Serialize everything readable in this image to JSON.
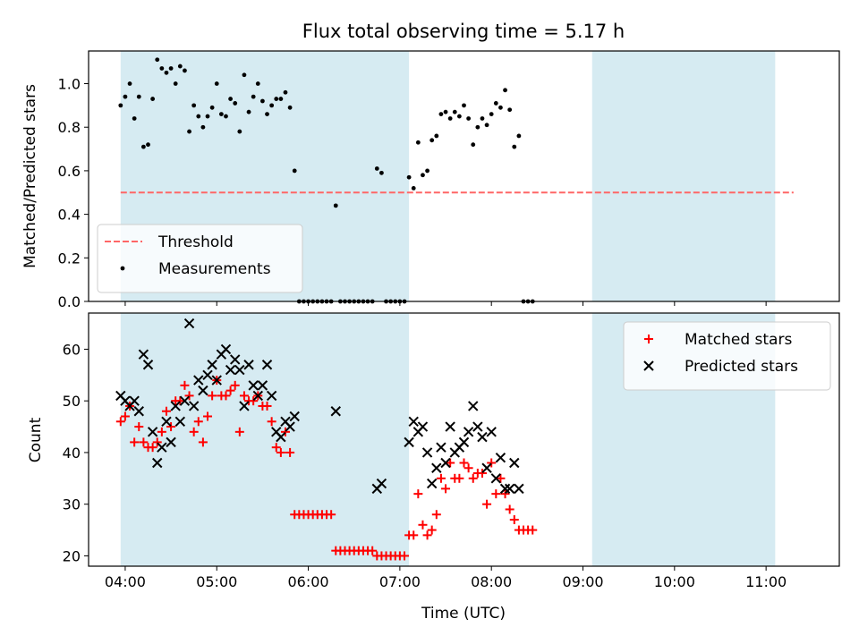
{
  "chart_data": [
    {
      "type": "scatter",
      "title": "Flux total observing time = 5.17 h",
      "xlabel": "",
      "ylabel": "Matched/Predicted stars",
      "xlim": [
        "03:36",
        "11:48"
      ],
      "ylim": [
        0.0,
        1.15
      ],
      "x_tick_labels": [
        "04:00",
        "05:00",
        "06:00",
        "07:00",
        "08:00",
        "09:00",
        "10:00",
        "11:00"
      ],
      "y_tick_labels": [
        "0.0",
        "0.2",
        "0.4",
        "0.6",
        "0.8",
        "1.0"
      ],
      "shaded_intervals": [
        [
          "03:57",
          "07:06"
        ],
        [
          "09:06",
          "11:06"
        ]
      ],
      "shade_color": "#add8e6",
      "threshold": {
        "name": "Threshold",
        "value": 0.5,
        "x_range": [
          "03:57",
          "11:18"
        ],
        "color": "#ff6666",
        "style": "dashed"
      },
      "legend": {
        "position": "lower-left",
        "entries": [
          "Threshold",
          "Measurements"
        ]
      },
      "series": [
        {
          "name": "Measurements",
          "marker": "dot",
          "color": "#000000",
          "points": [
            [
              "03:57",
              0.9
            ],
            [
              "04:00",
              0.94
            ],
            [
              "04:03",
              1.0
            ],
            [
              "04:06",
              0.84
            ],
            [
              "04:09",
              0.94
            ],
            [
              "04:12",
              0.71
            ],
            [
              "04:15",
              0.72
            ],
            [
              "04:18",
              0.93
            ],
            [
              "04:21",
              1.11
            ],
            [
              "04:24",
              1.07
            ],
            [
              "04:27",
              1.05
            ],
            [
              "04:30",
              1.07
            ],
            [
              "04:33",
              1.0
            ],
            [
              "04:36",
              1.08
            ],
            [
              "04:39",
              1.06
            ],
            [
              "04:42",
              0.78
            ],
            [
              "04:45",
              0.9
            ],
            [
              "04:48",
              0.85
            ],
            [
              "04:51",
              0.8
            ],
            [
              "04:54",
              0.85
            ],
            [
              "04:57",
              0.89
            ],
            [
              "05:00",
              1.0
            ],
            [
              "05:03",
              0.86
            ],
            [
              "05:06",
              0.85
            ],
            [
              "05:09",
              0.93
            ],
            [
              "05:12",
              0.91
            ],
            [
              "05:15",
              0.78
            ],
            [
              "05:18",
              1.04
            ],
            [
              "05:21",
              0.87
            ],
            [
              "05:24",
              0.94
            ],
            [
              "05:27",
              1.0
            ],
            [
              "05:30",
              0.92
            ],
            [
              "05:33",
              0.86
            ],
            [
              "05:36",
              0.9
            ],
            [
              "05:39",
              0.93
            ],
            [
              "05:42",
              0.93
            ],
            [
              "05:45",
              0.96
            ],
            [
              "05:48",
              0.89
            ],
            [
              "05:51",
              0.6
            ],
            [
              "05:54",
              0.0
            ],
            [
              "05:57",
              0.0
            ],
            [
              "06:00",
              0.0
            ],
            [
              "06:03",
              0.0
            ],
            [
              "06:06",
              0.0
            ],
            [
              "06:09",
              0.0
            ],
            [
              "06:12",
              0.0
            ],
            [
              "06:15",
              0.0
            ],
            [
              "06:18",
              0.44
            ],
            [
              "06:21",
              0.0
            ],
            [
              "06:24",
              0.0
            ],
            [
              "06:27",
              0.0
            ],
            [
              "06:30",
              0.0
            ],
            [
              "06:33",
              0.0
            ],
            [
              "06:36",
              0.0
            ],
            [
              "06:39",
              0.0
            ],
            [
              "06:42",
              0.0
            ],
            [
              "06:45",
              0.61
            ],
            [
              "06:48",
              0.59
            ],
            [
              "06:51",
              0.0
            ],
            [
              "06:54",
              0.0
            ],
            [
              "06:57",
              0.0
            ],
            [
              "07:00",
              0.0
            ],
            [
              "07:03",
              0.0
            ],
            [
              "07:06",
              0.57
            ],
            [
              "07:09",
              0.52
            ],
            [
              "07:12",
              0.73
            ],
            [
              "07:15",
              0.58
            ],
            [
              "07:18",
              0.6
            ],
            [
              "07:21",
              0.74
            ],
            [
              "07:24",
              0.76
            ],
            [
              "07:27",
              0.86
            ],
            [
              "07:30",
              0.87
            ],
            [
              "07:33",
              0.84
            ],
            [
              "07:36",
              0.87
            ],
            [
              "07:39",
              0.85
            ],
            [
              "07:42",
              0.9
            ],
            [
              "07:45",
              0.84
            ],
            [
              "07:48",
              0.72
            ],
            [
              "07:51",
              0.8
            ],
            [
              "07:54",
              0.84
            ],
            [
              "07:57",
              0.81
            ],
            [
              "08:00",
              0.86
            ],
            [
              "08:03",
              0.91
            ],
            [
              "08:06",
              0.89
            ],
            [
              "08:09",
              0.97
            ],
            [
              "08:12",
              0.88
            ],
            [
              "08:15",
              0.71
            ],
            [
              "08:18",
              0.76
            ],
            [
              "08:21",
              0.0
            ],
            [
              "08:24",
              0.0
            ],
            [
              "08:27",
              0.0
            ]
          ]
        }
      ]
    },
    {
      "type": "scatter",
      "title": "",
      "xlabel": "Time (UTC)",
      "ylabel": "Count",
      "xlim": [
        "03:36",
        "11:48"
      ],
      "ylim": [
        18,
        67
      ],
      "x_tick_labels": [
        "04:00",
        "05:00",
        "06:00",
        "07:00",
        "08:00",
        "09:00",
        "10:00",
        "11:00"
      ],
      "y_tick_labels": [
        "20",
        "30",
        "40",
        "50",
        "60"
      ],
      "shaded_intervals": [
        [
          "03:57",
          "07:06"
        ],
        [
          "09:06",
          "11:06"
        ]
      ],
      "shade_color": "#add8e6",
      "legend": {
        "position": "top-right",
        "entries": [
          "Matched stars",
          "Predicted stars"
        ]
      },
      "series": [
        {
          "name": "Matched stars",
          "marker": "plus",
          "color": "#ff0000",
          "points": [
            [
              "03:57",
              46
            ],
            [
              "04:00",
              47
            ],
            [
              "04:03",
              49
            ],
            [
              "04:06",
              42
            ],
            [
              "04:09",
              45
            ],
            [
              "04:12",
              42
            ],
            [
              "04:15",
              41
            ],
            [
              "04:18",
              41
            ],
            [
              "04:21",
              42
            ],
            [
              "04:24",
              44
            ],
            [
              "04:27",
              48
            ],
            [
              "04:30",
              45
            ],
            [
              "04:33",
              50
            ],
            [
              "04:36",
              50
            ],
            [
              "04:39",
              53
            ],
            [
              "04:42",
              51
            ],
            [
              "04:45",
              44
            ],
            [
              "04:48",
              46
            ],
            [
              "04:51",
              42
            ],
            [
              "04:54",
              47
            ],
            [
              "04:57",
              51
            ],
            [
              "05:00",
              54
            ],
            [
              "05:03",
              51
            ],
            [
              "05:06",
              51
            ],
            [
              "05:09",
              52
            ],
            [
              "05:12",
              53
            ],
            [
              "05:15",
              44
            ],
            [
              "05:18",
              51
            ],
            [
              "05:21",
              50
            ],
            [
              "05:24",
              50
            ],
            [
              "05:27",
              51
            ],
            [
              "05:30",
              49
            ],
            [
              "05:33",
              49
            ],
            [
              "05:36",
              46
            ],
            [
              "05:39",
              41
            ],
            [
              "05:42",
              40
            ],
            [
              "05:45",
              44
            ],
            [
              "05:48",
              40
            ],
            [
              "05:51",
              28
            ],
            [
              "05:54",
              28
            ],
            [
              "05:57",
              28
            ],
            [
              "06:00",
              28
            ],
            [
              "06:03",
              28
            ],
            [
              "06:06",
              28
            ],
            [
              "06:09",
              28
            ],
            [
              "06:12",
              28
            ],
            [
              "06:15",
              28
            ],
            [
              "06:18",
              21
            ],
            [
              "06:21",
              21
            ],
            [
              "06:24",
              21
            ],
            [
              "06:27",
              21
            ],
            [
              "06:30",
              21
            ],
            [
              "06:33",
              21
            ],
            [
              "06:36",
              21
            ],
            [
              "06:39",
              21
            ],
            [
              "06:42",
              21
            ],
            [
              "06:45",
              20
            ],
            [
              "06:48",
              20
            ],
            [
              "06:51",
              20
            ],
            [
              "06:54",
              20
            ],
            [
              "06:57",
              20
            ],
            [
              "07:00",
              20
            ],
            [
              "07:03",
              20
            ],
            [
              "07:06",
              24
            ],
            [
              "07:09",
              24
            ],
            [
              "07:12",
              32
            ],
            [
              "07:15",
              26
            ],
            [
              "07:18",
              24
            ],
            [
              "07:21",
              25
            ],
            [
              "07:24",
              28
            ],
            [
              "07:27",
              35
            ],
            [
              "07:30",
              33
            ],
            [
              "07:33",
              38
            ],
            [
              "07:36",
              35
            ],
            [
              "07:39",
              35
            ],
            [
              "07:42",
              38
            ],
            [
              "07:45",
              37
            ],
            [
              "07:48",
              35
            ],
            [
              "07:51",
              36
            ],
            [
              "07:54",
              36
            ],
            [
              "07:57",
              30
            ],
            [
              "08:00",
              38
            ],
            [
              "08:03",
              32
            ],
            [
              "08:06",
              35
            ],
            [
              "08:09",
              32
            ],
            [
              "08:12",
              29
            ],
            [
              "08:15",
              27
            ],
            [
              "08:18",
              25
            ],
            [
              "08:21",
              25
            ],
            [
              "08:24",
              25
            ],
            [
              "08:27",
              25
            ]
          ]
        },
        {
          "name": "Predicted stars",
          "marker": "x",
          "color": "#000000",
          "points": [
            [
              "03:57",
              51
            ],
            [
              "04:00",
              50
            ],
            [
              "04:03",
              49
            ],
            [
              "04:06",
              50
            ],
            [
              "04:09",
              48
            ],
            [
              "04:12",
              59
            ],
            [
              "04:15",
              57
            ],
            [
              "04:18",
              44
            ],
            [
              "04:21",
              38
            ],
            [
              "04:24",
              41
            ],
            [
              "04:27",
              46
            ],
            [
              "04:30",
              42
            ],
            [
              "04:33",
              49
            ],
            [
              "04:36",
              46
            ],
            [
              "04:39",
              50
            ],
            [
              "04:42",
              65
            ],
            [
              "04:45",
              49
            ],
            [
              "04:48",
              54
            ],
            [
              "04:51",
              52
            ],
            [
              "04:54",
              55
            ],
            [
              "04:57",
              57
            ],
            [
              "05:00",
              54
            ],
            [
              "05:03",
              59
            ],
            [
              "05:06",
              60
            ],
            [
              "05:09",
              56
            ],
            [
              "05:12",
              58
            ],
            [
              "05:15",
              56
            ],
            [
              "05:18",
              49
            ],
            [
              "05:21",
              57
            ],
            [
              "05:24",
              53
            ],
            [
              "05:27",
              51
            ],
            [
              "05:30",
              53
            ],
            [
              "05:33",
              57
            ],
            [
              "05:36",
              51
            ],
            [
              "05:39",
              44
            ],
            [
              "05:42",
              43
            ],
            [
              "05:45",
              46
            ],
            [
              "05:48",
              45
            ],
            [
              "05:51",
              47
            ],
            [
              "06:18",
              48
            ],
            [
              "06:45",
              33
            ],
            [
              "06:48",
              34
            ],
            [
              "07:06",
              42
            ],
            [
              "07:09",
              46
            ],
            [
              "07:12",
              44
            ],
            [
              "07:15",
              45
            ],
            [
              "07:18",
              40
            ],
            [
              "07:21",
              34
            ],
            [
              "07:24",
              37
            ],
            [
              "07:27",
              41
            ],
            [
              "07:30",
              38
            ],
            [
              "07:33",
              45
            ],
            [
              "07:36",
              40
            ],
            [
              "07:39",
              41
            ],
            [
              "07:42",
              42
            ],
            [
              "07:45",
              44
            ],
            [
              "07:48",
              49
            ],
            [
              "07:51",
              45
            ],
            [
              "07:54",
              43
            ],
            [
              "07:57",
              37
            ],
            [
              "08:00",
              44
            ],
            [
              "08:03",
              35
            ],
            [
              "08:06",
              39
            ],
            [
              "08:09",
              33
            ],
            [
              "08:12",
              33
            ],
            [
              "08:15",
              38
            ],
            [
              "08:18",
              33
            ]
          ]
        }
      ]
    }
  ]
}
